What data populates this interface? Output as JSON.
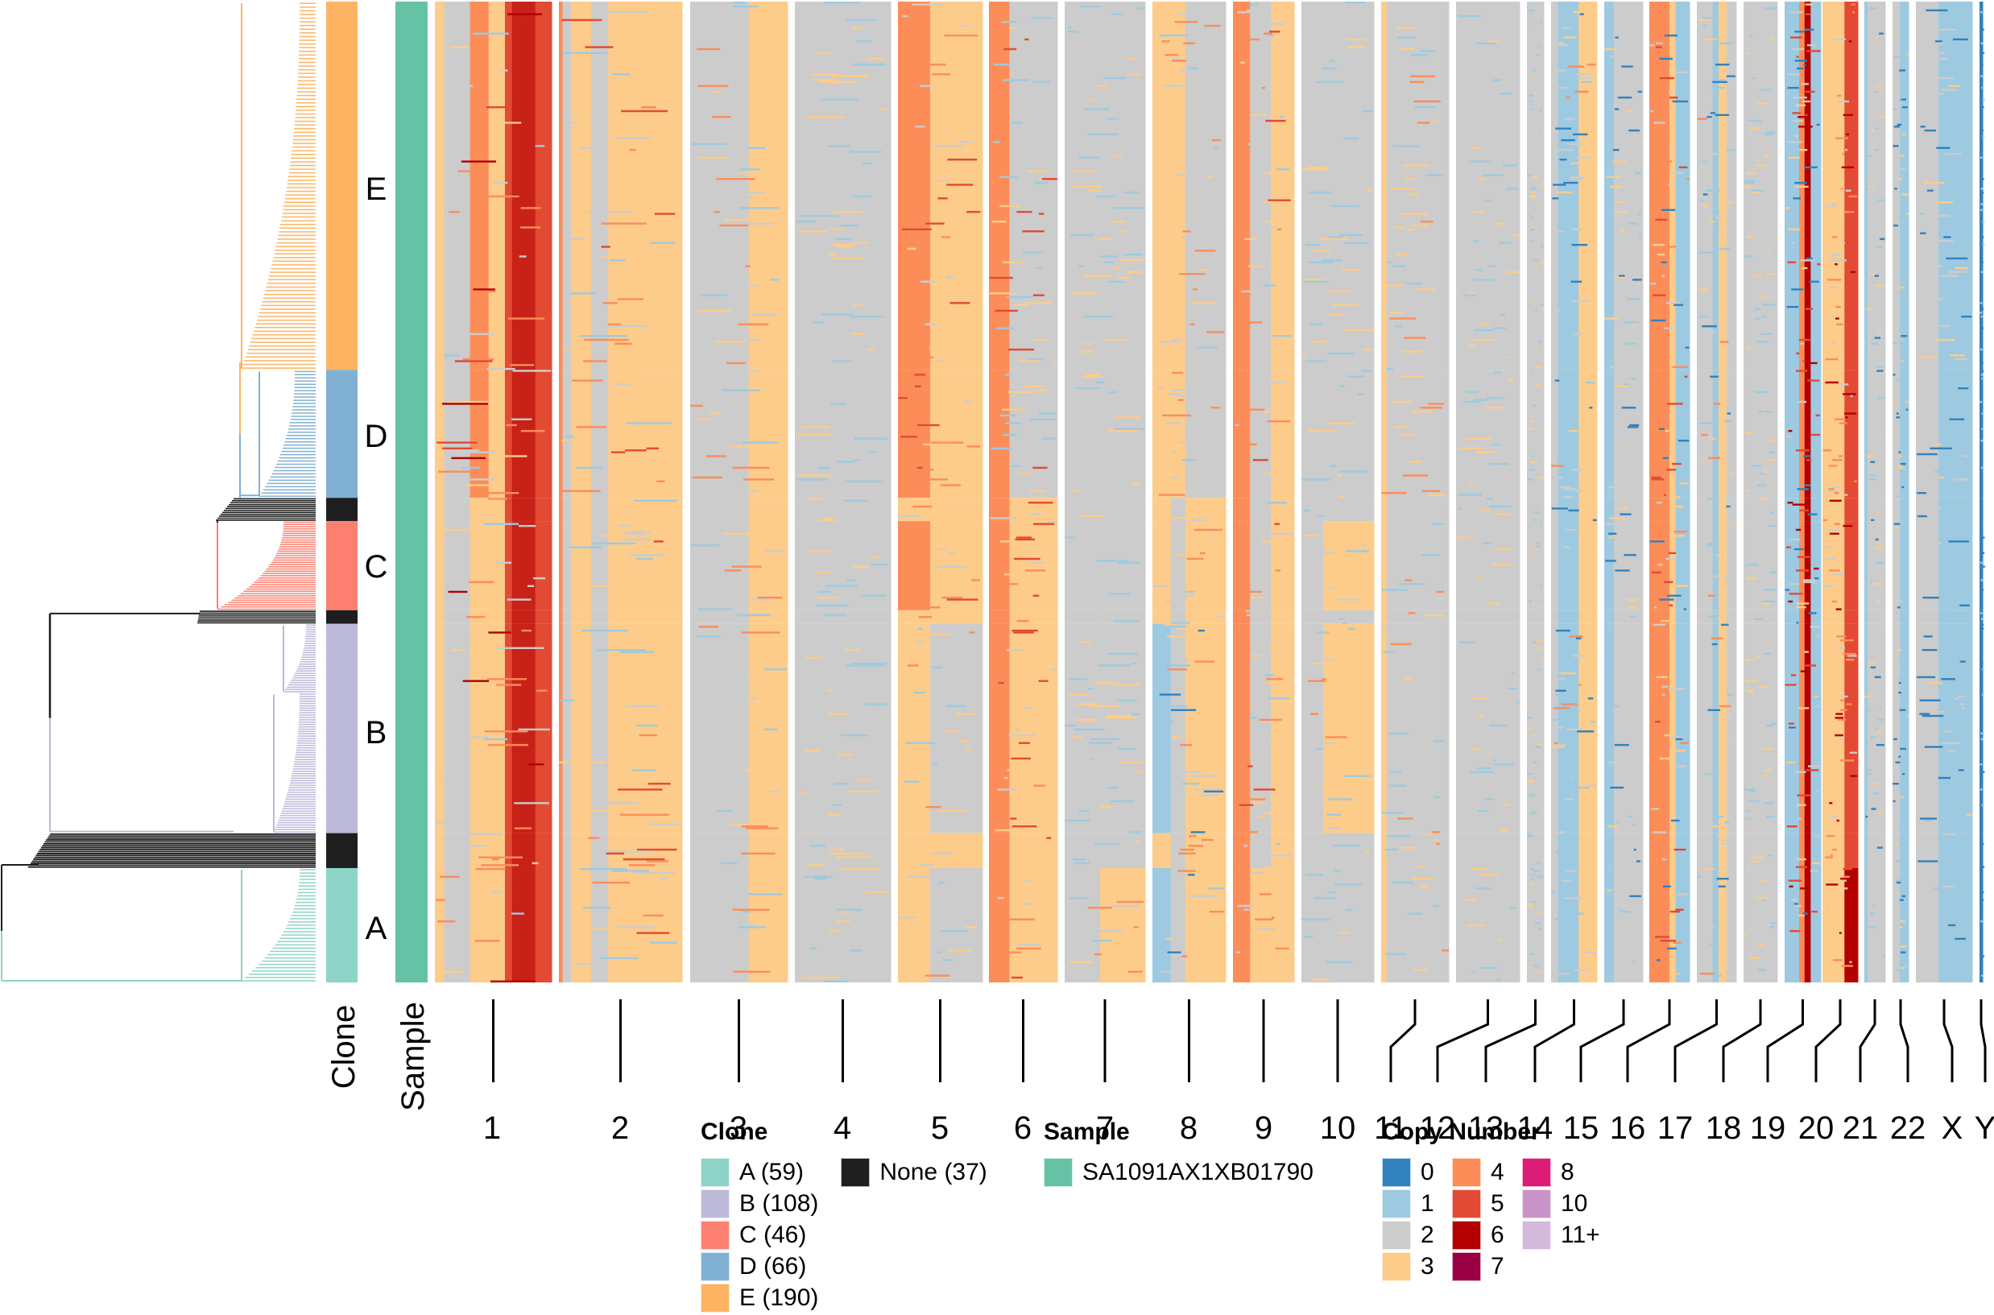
{
  "chart_data": {
    "type": "heatmap",
    "title": "",
    "description": "Single-cell copy number heatmap with clone phylogeny (dendrogram) on the left, Clone and Sample annotation tracks, and chromosomes on the x axis",
    "xlabel": "",
    "ylabel": "",
    "x_tick_labels": [
      "1",
      "2",
      "3",
      "4",
      "5",
      "6",
      "7",
      "8",
      "9",
      "10",
      "11",
      "12",
      "13",
      "14",
      "15",
      "16",
      "17",
      "18",
      "19",
      "20",
      "21",
      "22",
      "X",
      "Y"
    ],
    "annotation_track_labels": [
      "Clone",
      "Sample"
    ],
    "clone_order_top_to_bottom": [
      "E",
      "D",
      "None",
      "C",
      "None",
      "B",
      "None",
      "A"
    ],
    "clone_letters_shown": [
      "E",
      "D",
      "C",
      "B",
      "A"
    ],
    "clone_row_fractions": {
      "note": "vertical share of rows per band, top to bottom",
      "bands": [
        {
          "clone": "E",
          "cells": 190
        },
        {
          "clone": "D",
          "cells": 66
        },
        {
          "clone": "None",
          "cells": 12
        },
        {
          "clone": "C",
          "cells": 46
        },
        {
          "clone": "None",
          "cells": 7
        },
        {
          "clone": "B",
          "cells": 108
        },
        {
          "clone": "None",
          "cells": 18
        },
        {
          "clone": "A",
          "cells": 59
        }
      ]
    },
    "chromosome_profiles": {
      "note": "dominant copy-number state per chromosome segment (segment bounds as fraction of chromosome length) for each clone group",
      "1": {
        "segments": [
          [
            0,
            0.08
          ],
          [
            0.08,
            0.3
          ],
          [
            0.3,
            0.46
          ],
          [
            0.46,
            0.6
          ],
          [
            0.6,
            1
          ]
        ],
        "E": [
          3,
          2,
          4,
          3,
          5
        ],
        "D": [
          3,
          2,
          4,
          3,
          5
        ],
        "C": [
          3,
          2,
          3,
          3,
          5
        ],
        "B": [
          3,
          2,
          3,
          3,
          5
        ],
        "A": [
          3,
          2,
          3,
          3,
          5
        ],
        "None": [
          3,
          2,
          3,
          3,
          5
        ],
        "hot": [
          0.66,
          0.86,
          6
        ]
      },
      "2": {
        "segments": [
          [
            0,
            0.03
          ],
          [
            0.03,
            0.1
          ],
          [
            0.1,
            0.26
          ],
          [
            0.26,
            0.4
          ],
          [
            0.4,
            1
          ]
        ],
        "E": [
          4,
          2,
          3,
          2,
          3
        ],
        "D": [
          4,
          2,
          3,
          2,
          3
        ],
        "C": [
          4,
          2,
          3,
          2,
          3
        ],
        "B": [
          4,
          2,
          3,
          2,
          3
        ],
        "A": [
          4,
          2,
          3,
          2,
          3
        ],
        "None": [
          4,
          2,
          3,
          2,
          3
        ]
      },
      "3": {
        "segments": [
          [
            0,
            0.6
          ],
          [
            0.6,
            1
          ]
        ],
        "E": [
          2,
          3
        ],
        "D": [
          2,
          3
        ],
        "C": [
          2,
          3
        ],
        "B": [
          2,
          3
        ],
        "A": [
          2,
          3
        ],
        "None": [
          2,
          3
        ]
      },
      "4": {
        "segments": [
          [
            0,
            1
          ]
        ],
        "E": [
          2
        ],
        "D": [
          2
        ],
        "C": [
          2
        ],
        "B": [
          2
        ],
        "A": [
          2
        ],
        "None": [
          2
        ]
      },
      "5": {
        "segments": [
          [
            0,
            0.38
          ],
          [
            0.38,
            1
          ]
        ],
        "E": [
          4,
          3
        ],
        "D": [
          4,
          3
        ],
        "C": [
          4,
          3
        ],
        "B": [
          3,
          2
        ],
        "A": [
          3,
          2
        ],
        "None": [
          3,
          3
        ]
      },
      "6": {
        "segments": [
          [
            0,
            0.3
          ],
          [
            0.3,
            1
          ]
        ],
        "E": [
          4,
          2
        ],
        "D": [
          4,
          2
        ],
        "C": [
          4,
          3
        ],
        "B": [
          4,
          3
        ],
        "A": [
          4,
          3
        ],
        "None": [
          4,
          3
        ]
      },
      "7": {
        "segments": [
          [
            0,
            0.44
          ],
          [
            0.44,
            1
          ]
        ],
        "E": [
          2,
          2
        ],
        "D": [
          2,
          2
        ],
        "C": [
          2,
          2
        ],
        "B": [
          2,
          2
        ],
        "A": [
          2,
          3
        ],
        "None": [
          2,
          2
        ]
      },
      "8": {
        "segments": [
          [
            0,
            0.25
          ],
          [
            0.25,
            0.45
          ],
          [
            0.45,
            1
          ]
        ],
        "E": [
          3,
          3,
          2
        ],
        "D": [
          3,
          3,
          2
        ],
        "C": [
          3,
          2,
          3
        ],
        "B": [
          1,
          2,
          3
        ],
        "A": [
          1,
          2,
          3
        ],
        "None": [
          3,
          2,
          3
        ]
      },
      "9": {
        "segments": [
          [
            0,
            0.28
          ],
          [
            0.28,
            0.62
          ],
          [
            0.62,
            1
          ]
        ],
        "E": [
          4,
          2,
          3
        ],
        "D": [
          4,
          2,
          3
        ],
        "C": [
          4,
          2,
          3
        ],
        "B": [
          4,
          2,
          3
        ],
        "A": [
          4,
          3,
          3
        ],
        "None": [
          4,
          2,
          3
        ]
      },
      "10": {
        "segments": [
          [
            0,
            0.3
          ],
          [
            0.3,
            1
          ]
        ],
        "E": [
          2,
          2
        ],
        "D": [
          2,
          2
        ],
        "C": [
          2,
          3
        ],
        "B": [
          2,
          3
        ],
        "A": [
          2,
          2
        ],
        "None": [
          2,
          2
        ]
      },
      "11": {
        "segments": [
          [
            0,
            0.08
          ],
          [
            0.08,
            1
          ]
        ],
        "E": [
          3,
          2
        ],
        "D": [
          3,
          2
        ],
        "C": [
          3,
          2
        ],
        "B": [
          3,
          2
        ],
        "A": [
          3,
          2
        ],
        "None": [
          3,
          2
        ]
      },
      "12": {
        "segments": [
          [
            0,
            1
          ]
        ],
        "E": [
          2
        ],
        "D": [
          2
        ],
        "C": [
          2
        ],
        "B": [
          2
        ],
        "A": [
          2
        ],
        "None": [
          2
        ]
      },
      "13": {
        "segments": [
          [
            0,
            1
          ]
        ],
        "E": [
          2
        ],
        "D": [
          2
        ],
        "C": [
          2
        ],
        "B": [
          2
        ],
        "A": [
          2
        ],
        "None": [
          2
        ]
      },
      "14": {
        "segments": [
          [
            0,
            0.15
          ],
          [
            0.15,
            0.6
          ],
          [
            0.6,
            1
          ]
        ],
        "E": [
          2,
          1,
          3
        ],
        "D": [
          2,
          1,
          3
        ],
        "C": [
          2,
          1,
          3
        ],
        "B": [
          2,
          1,
          3
        ],
        "A": [
          2,
          1,
          3
        ],
        "None": [
          2,
          1,
          3
        ]
      },
      "15": {
        "segments": [
          [
            0,
            0.25
          ],
          [
            0.25,
            1
          ]
        ],
        "E": [
          1,
          2
        ],
        "D": [
          1,
          2
        ],
        "C": [
          1,
          2
        ],
        "B": [
          1,
          2
        ],
        "A": [
          1,
          2
        ],
        "None": [
          1,
          2
        ]
      },
      "16": {
        "segments": [
          [
            0,
            0.5
          ],
          [
            0.5,
            0.65
          ],
          [
            0.65,
            1
          ]
        ],
        "E": [
          4,
          3,
          1
        ],
        "D": [
          4,
          3,
          1
        ],
        "C": [
          4,
          3,
          1
        ],
        "B": [
          4,
          3,
          1
        ],
        "A": [
          4,
          3,
          1
        ],
        "None": [
          4,
          3,
          1
        ]
      },
      "17": {
        "segments": [
          [
            0,
            0.4
          ],
          [
            0.4,
            0.55
          ],
          [
            0.55,
            0.75
          ],
          [
            0.75,
            1
          ]
        ],
        "E": [
          2,
          1,
          3,
          2
        ],
        "D": [
          2,
          1,
          3,
          2
        ],
        "C": [
          2,
          1,
          3,
          2
        ],
        "B": [
          2,
          1,
          3,
          2
        ],
        "A": [
          2,
          1,
          3,
          2
        ],
        "None": [
          2,
          1,
          3,
          2
        ]
      },
      "18": {
        "segments": [
          [
            0,
            1
          ]
        ],
        "E": [
          2
        ],
        "D": [
          2
        ],
        "C": [
          2
        ],
        "B": [
          2
        ],
        "A": [
          2
        ],
        "None": [
          2
        ]
      },
      "19": {
        "segments": [
          [
            0,
            0.4
          ],
          [
            0.4,
            0.55
          ],
          [
            0.55,
            0.72
          ],
          [
            0.72,
            1
          ]
        ],
        "E": [
          1,
          4,
          6,
          1
        ],
        "D": [
          1,
          4,
          6,
          1
        ],
        "C": [
          1,
          4,
          6,
          1
        ],
        "B": [
          1,
          4,
          6,
          1
        ],
        "A": [
          1,
          4,
          6,
          1
        ],
        "None": [
          1,
          4,
          6,
          1
        ]
      },
      "20": {
        "segments": [
          [
            0,
            0.62
          ],
          [
            0.62,
            1
          ]
        ],
        "E": [
          3,
          5
        ],
        "D": [
          3,
          5
        ],
        "C": [
          3,
          5
        ],
        "B": [
          3,
          5
        ],
        "A": [
          3,
          6
        ],
        "None": [
          3,
          5
        ]
      },
      "21": {
        "segments": [
          [
            0,
            0.15
          ],
          [
            0.15,
            1
          ]
        ],
        "E": [
          1,
          2
        ],
        "D": [
          1,
          2
        ],
        "C": [
          1,
          2
        ],
        "B": [
          1,
          2
        ],
        "A": [
          1,
          2
        ],
        "None": [
          1,
          2
        ]
      },
      "22": {
        "segments": [
          [
            0,
            0.45
          ],
          [
            0.45,
            1
          ]
        ],
        "E": [
          2,
          1
        ],
        "D": [
          2,
          1
        ],
        "C": [
          2,
          1
        ],
        "B": [
          2,
          1
        ],
        "A": [
          2,
          1
        ],
        "None": [
          2,
          1
        ]
      },
      "X": {
        "segments": [
          [
            0,
            0.4
          ],
          [
            0.4,
            0.55
          ],
          [
            0.55,
            1
          ]
        ],
        "E": [
          2,
          1,
          1
        ],
        "D": [
          2,
          1,
          1
        ],
        "C": [
          2,
          1,
          1
        ],
        "B": [
          2,
          1,
          1
        ],
        "A": [
          2,
          1,
          1
        ],
        "None": [
          2,
          1,
          1
        ]
      },
      "Y": {
        "segments": [
          [
            0,
            1
          ]
        ],
        "E": [
          0
        ],
        "D": [
          0
        ],
        "C": [
          0
        ],
        "B": [
          0
        ],
        "A": [
          0
        ],
        "None": [
          0
        ]
      }
    },
    "legends": [
      {
        "title": "Clone",
        "entries": [
          {
            "label": "A (59)",
            "color": "#8ed4c6"
          },
          {
            "label": "B (108)",
            "color": "#bdb9d9"
          },
          {
            "label": "C (46)",
            "color": "#fb8072"
          },
          {
            "label": "D (66)",
            "color": "#80b1d3"
          },
          {
            "label": "E (190)",
            "color": "#fdb462"
          },
          {
            "label": "None (37)",
            "color": "#1e1e1e"
          }
        ]
      },
      {
        "title": "Sample",
        "entries": [
          {
            "label": "SA1091AX1XB01790",
            "color": "#66c2a5"
          }
        ]
      },
      {
        "title": "Copy Number",
        "entries": [
          {
            "label": "0",
            "color": "#3182bd"
          },
          {
            "label": "1",
            "color": "#9ecae1"
          },
          {
            "label": "2",
            "color": "#cccccc"
          },
          {
            "label": "3",
            "color": "#fdcc8a"
          },
          {
            "label": "4",
            "color": "#fc8d59"
          },
          {
            "label": "5",
            "color": "#e34a33"
          },
          {
            "label": "6",
            "color": "#b30000"
          },
          {
            "label": "7",
            "color": "#980043"
          },
          {
            "label": "8",
            "color": "#dd1c77"
          },
          {
            "label": "10",
            "color": "#c994c7"
          },
          {
            "label": "11+",
            "color": "#d4b9da"
          }
        ]
      }
    ]
  },
  "ui": {
    "clone_axis_label": "Clone",
    "sample_axis_label": "Sample",
    "clone_labels": {
      "E": "E",
      "D": "D",
      "C": "C",
      "B": "B",
      "A": "A"
    },
    "legend_clone_title": "Clone",
    "legend_sample_title": "Sample",
    "legend_cn_title": "Copy Number"
  }
}
